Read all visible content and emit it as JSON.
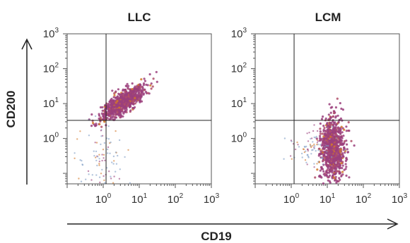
{
  "chart_data": {
    "type": "scatter",
    "xlabel": "CD19",
    "ylabel": "CD200",
    "x_scale": "log",
    "y_scale": "log",
    "x_range": [
      0.1,
      1000
    ],
    "y_range": [
      0.05,
      1000
    ],
    "x_ticks": [
      {
        "base": "10",
        "exp": "0"
      },
      {
        "base": "10",
        "exp": "1"
      },
      {
        "base": "10",
        "exp": "2"
      },
      {
        "base": "10",
        "exp": "3"
      }
    ],
    "y_ticks": [
      {
        "base": "10",
        "exp": "0"
      },
      {
        "base": "10",
        "exp": "1"
      },
      {
        "base": "10",
        "exp": "2"
      },
      {
        "base": "10",
        "exp": "3"
      }
    ],
    "colors": {
      "cells": "#9b3f7c",
      "scatter": [
        "#9b3f7c",
        "#d2782a",
        "#7f9cc4",
        "#b04f6a"
      ]
    },
    "panels": [
      {
        "title": "LLC",
        "quadrant_gate": {
          "x": 1.2,
          "y": 3.3
        },
        "populations": [
          {
            "center": {
              "x": 3.5,
              "y": 11
            },
            "spread_log": {
              "x": 0.3,
              "y": 0.25
            },
            "correlation": 0.8,
            "density": "high"
          },
          {
            "center": {
              "x": 1.0,
              "y": 0.25
            },
            "spread_log": {
              "x": 0.35,
              "y": 0.5
            },
            "correlation": 0,
            "density": "sparse"
          }
        ]
      },
      {
        "title": "LCM",
        "quadrant_gate": {
          "x": 1.2,
          "y": 3.3
        },
        "populations": [
          {
            "center": {
              "x": 14,
              "y": 0.5
            },
            "spread_log": {
              "x": 0.16,
              "y": 0.45
            },
            "correlation": 0,
            "density": "high"
          },
          {
            "center": {
              "x": 3.5,
              "y": 0.6
            },
            "spread_log": {
              "x": 0.3,
              "y": 0.3
            },
            "correlation": 0,
            "density": "sparse"
          }
        ]
      }
    ]
  }
}
